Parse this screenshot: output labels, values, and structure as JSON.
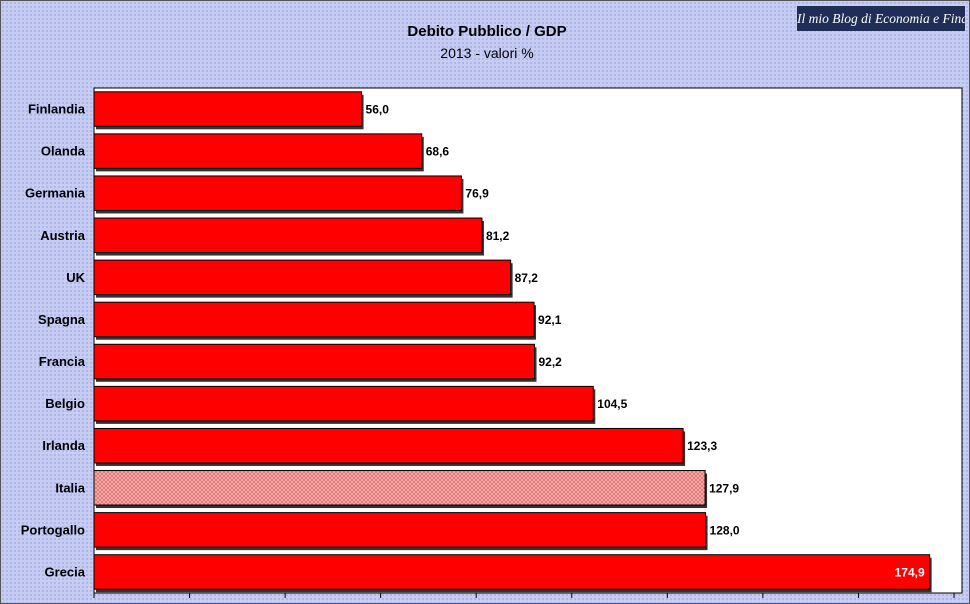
{
  "watermark": "Il mio Blog di Economia e Finanza",
  "chart_data": {
    "type": "bar",
    "orientation": "horizontal",
    "title": "Debito Pubblico / GDP",
    "subtitle": "2013 - valori %",
    "categories": [
      "Finlandia",
      "Olanda",
      "Germania",
      "Austria",
      "UK",
      "Spagna",
      "Francia",
      "Belgio",
      "Irlanda",
      "Italia",
      "Portogallo",
      "Grecia"
    ],
    "values": [
      56.0,
      68.6,
      76.9,
      81.2,
      87.2,
      92.1,
      92.2,
      104.5,
      123.3,
      127.9,
      128.0,
      174.9
    ],
    "data_labels": [
      "56,0",
      "68,6",
      "76,9",
      "81,2",
      "87,2",
      "92,1",
      "92,2",
      "104,5",
      "123,3",
      "127,9",
      "128,0",
      "174,9"
    ],
    "highlight": "Italia",
    "xlim": [
      0,
      180
    ],
    "x_major_step": 20,
    "grid": false,
    "colors": {
      "bar": "#ff0000",
      "highlight_bar": "#f0a5a5",
      "highlight_hatch": "#d24a4a",
      "bar_border": "#000000",
      "plot_bg": "#ffffff",
      "frame_bg": "#c7cdf2",
      "inside_label": "#ffffff"
    }
  }
}
